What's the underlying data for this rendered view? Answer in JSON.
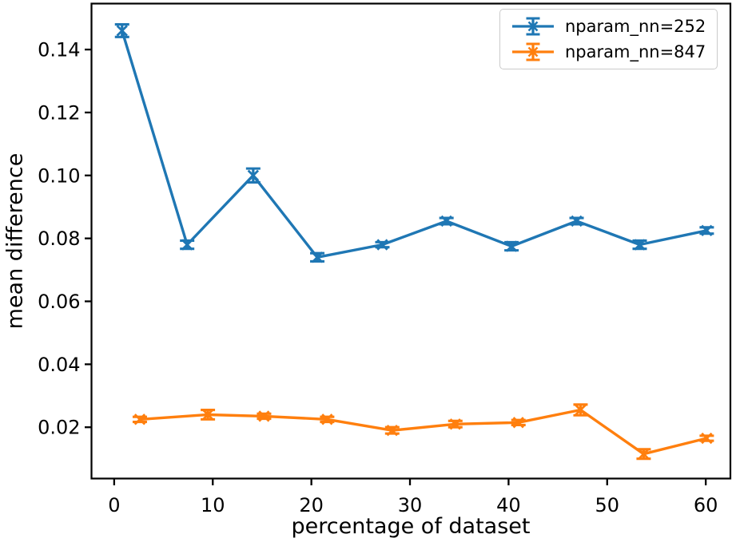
{
  "figure": {
    "background": "#ffffff"
  },
  "chart_data": {
    "type": "line",
    "title": "",
    "xlabel": "percentage of dataset",
    "ylabel": "mean difference",
    "x_ticks": [
      0,
      10,
      20,
      30,
      40,
      50,
      60
    ],
    "y_ticks": [
      0.02,
      0.04,
      0.06,
      0.08,
      0.1,
      0.12,
      0.14
    ],
    "xlim": [
      -2.3,
      62.5
    ],
    "ylim": [
      0.0037,
      0.1546
    ],
    "grid": false,
    "legend_position": "upper right",
    "marker": "x",
    "error_bars": true,
    "axis_color": "#000000",
    "series": [
      {
        "name": "nparam_nn=252",
        "color": "#1f77b4",
        "x": [
          0.8,
          7.4,
          14.1,
          20.6,
          27.2,
          33.7,
          40.3,
          46.9,
          53.3,
          60.1
        ],
        "y": [
          0.146,
          0.078,
          0.1,
          0.074,
          0.078,
          0.0855,
          0.0775,
          0.0855,
          0.078,
          0.0825
        ],
        "yerr": [
          0.002,
          0.0013,
          0.0022,
          0.0013,
          0.0008,
          0.001,
          0.0013,
          0.001,
          0.0013,
          0.001
        ]
      },
      {
        "name": "nparam_nn=847",
        "color": "#ff7f0e",
        "x": [
          2.6,
          9.5,
          15.2,
          21.6,
          28.2,
          34.6,
          41.0,
          47.3,
          53.7,
          60.1
        ],
        "y": [
          0.0225,
          0.024,
          0.0235,
          0.0225,
          0.019,
          0.021,
          0.0215,
          0.0255,
          0.0115,
          0.0165
        ],
        "yerr": [
          0.0008,
          0.0015,
          0.0008,
          0.0008,
          0.001,
          0.001,
          0.0008,
          0.0017,
          0.0015,
          0.0008
        ]
      }
    ]
  }
}
